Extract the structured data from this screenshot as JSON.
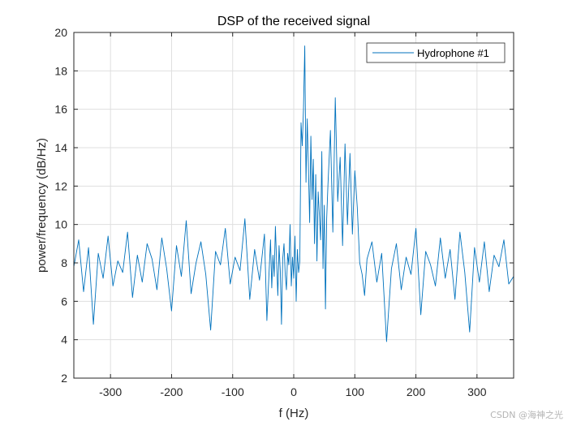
{
  "watermark": "CSDN @海神之光",
  "colors": {
    "series": "#0072BD",
    "grid": "#dfdfdf",
    "axis": "#262626"
  },
  "chart_data": {
    "type": "line",
    "title": "DSP of the received signal",
    "xlabel": "f (Hz)",
    "ylabel": "power/frequency (dB/Hz)",
    "xlim": [
      -360,
      360
    ],
    "ylim": [
      2,
      20
    ],
    "xticks": [
      -300,
      -200,
      -100,
      0,
      100,
      200,
      300
    ],
    "yticks": [
      2,
      4,
      6,
      8,
      10,
      12,
      14,
      16,
      18,
      20
    ],
    "grid": true,
    "legend_position": "top-right",
    "series": [
      {
        "name": "Hydrophone #1",
        "color": "#0072BD",
        "x": [
          -360,
          -352,
          -344,
          -336,
          -328,
          -320,
          -312,
          -304,
          -296,
          -288,
          -280,
          -272,
          -264,
          -256,
          -248,
          -240,
          -232,
          -224,
          -216,
          -208,
          -200,
          -192,
          -184,
          -176,
          -168,
          -160,
          -152,
          -144,
          -136,
          -128,
          -120,
          -112,
          -104,
          -96,
          -88,
          -80,
          -72,
          -64,
          -56,
          -48,
          -44,
          -40,
          -38,
          -36,
          -34,
          -32,
          -30,
          -28,
          -26,
          -24,
          -22,
          -20,
          -18,
          -16,
          -14,
          -12,
          -10,
          -8,
          -6,
          -4,
          -2,
          0,
          2,
          4,
          6,
          8,
          10,
          12,
          14,
          16,
          18,
          20,
          22,
          24,
          26,
          28,
          30,
          32,
          34,
          36,
          38,
          40,
          42,
          44,
          46,
          48,
          50,
          52,
          54,
          56,
          60,
          64,
          68,
          72,
          76,
          80,
          84,
          88,
          92,
          96,
          100,
          104,
          108,
          112,
          116,
          120,
          128,
          136,
          144,
          152,
          160,
          168,
          176,
          184,
          192,
          200,
          208,
          216,
          224,
          232,
          240,
          248,
          256,
          264,
          272,
          280,
          288,
          296,
          304,
          312,
          320,
          328,
          336,
          344,
          352,
          360
        ],
        "y": [
          7.8,
          9.2,
          6.5,
          8.8,
          4.8,
          8.5,
          7.2,
          9.4,
          6.8,
          8.1,
          7.5,
          9.6,
          6.2,
          8.4,
          7.0,
          9.0,
          8.2,
          6.6,
          9.3,
          7.7,
          5.5,
          8.9,
          7.3,
          10.2,
          6.4,
          8.0,
          9.1,
          7.4,
          4.5,
          8.6,
          7.9,
          9.8,
          6.9,
          8.3,
          7.6,
          10.3,
          6.1,
          8.7,
          7.1,
          9.5,
          5.0,
          7.8,
          9.2,
          6.7,
          8.4,
          7.3,
          9.9,
          8.0,
          6.3,
          8.9,
          7.6,
          4.8,
          8.2,
          9.0,
          7.4,
          6.6,
          8.5,
          7.9,
          10.0,
          6.8,
          8.3,
          7.2,
          9.4,
          6.0,
          8.7,
          7.5,
          8.1,
          15.3,
          14.1,
          16.0,
          19.3,
          12.2,
          15.5,
          13.0,
          10.1,
          14.6,
          11.3,
          13.4,
          9.0,
          12.6,
          8.1,
          11.7,
          10.5,
          9.2,
          13.8,
          7.7,
          11.0,
          5.6,
          10.3,
          12.1,
          14.9,
          9.6,
          16.6,
          11.2,
          13.5,
          8.9,
          14.2,
          10.0,
          13.7,
          9.5,
          12.8,
          10.9,
          8.0,
          7.4,
          6.3,
          8.2,
          9.1,
          7.0,
          8.5,
          3.9,
          7.7,
          9.0,
          6.6,
          8.3,
          7.4,
          9.8,
          5.3,
          8.6,
          7.9,
          6.8,
          9.3,
          7.2,
          8.7,
          6.1,
          9.6,
          7.5,
          4.4,
          8.8,
          7.0,
          9.1,
          6.5,
          8.4,
          7.8,
          9.2,
          6.9,
          7.3
        ]
      }
    ]
  }
}
